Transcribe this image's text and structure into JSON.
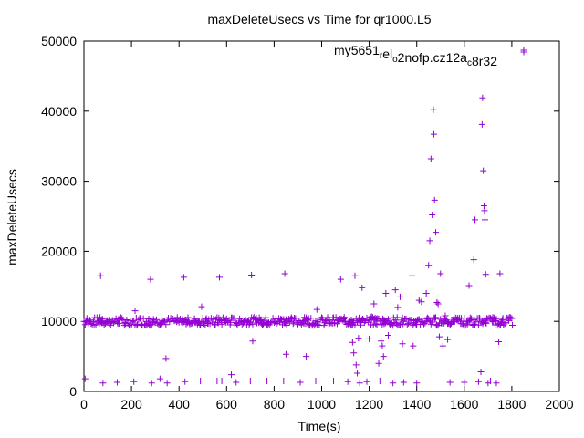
{
  "chart_data": {
    "type": "scatter",
    "title": "maxDeleteUsecs vs Time for qr1000.L5",
    "xlabel": "Time(s)",
    "ylabel": "maxDeleteUsecs",
    "xlim": [
      0,
      2000
    ],
    "ylim": [
      0,
      50000
    ],
    "xticks": [
      0,
      200,
      400,
      600,
      800,
      1000,
      1200,
      1400,
      1600,
      1800,
      2000
    ],
    "yticks": [
      0,
      10000,
      20000,
      30000,
      40000,
      50000
    ],
    "grid": false,
    "legend_position": "top-right",
    "series": [
      {
        "name": "my5651_rel_o2nofp.cz12a_c8r32",
        "name_parts": [
          {
            "text": "my5651",
            "sub": false
          },
          {
            "text": "r",
            "sub": true
          },
          {
            "text": "el",
            "sub": false
          },
          {
            "text": "o",
            "sub": true
          },
          {
            "text": "2nofp.cz12a",
            "sub": false
          },
          {
            "text": "c",
            "sub": true
          },
          {
            "text": "8r32",
            "sub": false
          }
        ],
        "color": "#9400d3",
        "marker": "plus",
        "baseline": {
          "x_start": 0,
          "x_end": 1800,
          "x_step": 5,
          "y_center": 10000,
          "y_spread": 600
        },
        "points": [
          [
            5,
            1800
          ],
          [
            70,
            16500
          ],
          [
            80,
            1200
          ],
          [
            140,
            1300
          ],
          [
            210,
            1400
          ],
          [
            215,
            11500
          ],
          [
            280,
            16000
          ],
          [
            285,
            1200
          ],
          [
            320,
            1800
          ],
          [
            345,
            4700
          ],
          [
            350,
            1200
          ],
          [
            420,
            16300
          ],
          [
            425,
            1400
          ],
          [
            490,
            1500
          ],
          [
            495,
            12100
          ],
          [
            560,
            1500
          ],
          [
            570,
            16300
          ],
          [
            580,
            1500
          ],
          [
            620,
            2400
          ],
          [
            640,
            1300
          ],
          [
            700,
            1500
          ],
          [
            705,
            16600
          ],
          [
            710,
            7200
          ],
          [
            770,
            1500
          ],
          [
            840,
            1500
          ],
          [
            845,
            16800
          ],
          [
            850,
            5300
          ],
          [
            910,
            1300
          ],
          [
            935,
            5000
          ],
          [
            975,
            1500
          ],
          [
            980,
            11700
          ],
          [
            1050,
            1500
          ],
          [
            1080,
            16000
          ],
          [
            1110,
            1400
          ],
          [
            1130,
            7000
          ],
          [
            1135,
            5500
          ],
          [
            1140,
            16500
          ],
          [
            1145,
            3800
          ],
          [
            1150,
            2600
          ],
          [
            1155,
            7600
          ],
          [
            1160,
            1200
          ],
          [
            1170,
            14800
          ],
          [
            1190,
            1400
          ],
          [
            1200,
            7500
          ],
          [
            1210,
            10700
          ],
          [
            1220,
            12500
          ],
          [
            1240,
            4000
          ],
          [
            1245,
            1500
          ],
          [
            1250,
            7200
          ],
          [
            1255,
            6500
          ],
          [
            1260,
            5000
          ],
          [
            1270,
            14000
          ],
          [
            1280,
            8000
          ],
          [
            1300,
            1200
          ],
          [
            1310,
            14500
          ],
          [
            1320,
            12000
          ],
          [
            1330,
            13500
          ],
          [
            1340,
            6800
          ],
          [
            1345,
            1300
          ],
          [
            1380,
            16500
          ],
          [
            1385,
            6500
          ],
          [
            1400,
            1200
          ],
          [
            1410,
            13000
          ],
          [
            1420,
            12800
          ],
          [
            1440,
            14000
          ],
          [
            1450,
            18000
          ],
          [
            1455,
            21500
          ],
          [
            1460,
            33200
          ],
          [
            1465,
            25200
          ],
          [
            1470,
            40200
          ],
          [
            1472,
            36700
          ],
          [
            1475,
            27300
          ],
          [
            1480,
            22700
          ],
          [
            1485,
            12700
          ],
          [
            1490,
            12500
          ],
          [
            1495,
            7800
          ],
          [
            1500,
            16800
          ],
          [
            1510,
            6500
          ],
          [
            1520,
            10800
          ],
          [
            1530,
            7400
          ],
          [
            1540,
            1300
          ],
          [
            1600,
            1300
          ],
          [
            1620,
            15100
          ],
          [
            1640,
            18800
          ],
          [
            1645,
            24500
          ],
          [
            1660,
            1400
          ],
          [
            1670,
            2800
          ],
          [
            1675,
            38100
          ],
          [
            1677,
            41900
          ],
          [
            1680,
            31500
          ],
          [
            1683,
            26500
          ],
          [
            1685,
            25800
          ],
          [
            1687,
            24500
          ],
          [
            1690,
            16700
          ],
          [
            1700,
            1200
          ],
          [
            1710,
            1500
          ],
          [
            1735,
            1200
          ],
          [
            1745,
            7100
          ],
          [
            1750,
            16800
          ],
          [
            1850,
            48700
          ]
        ]
      }
    ]
  }
}
